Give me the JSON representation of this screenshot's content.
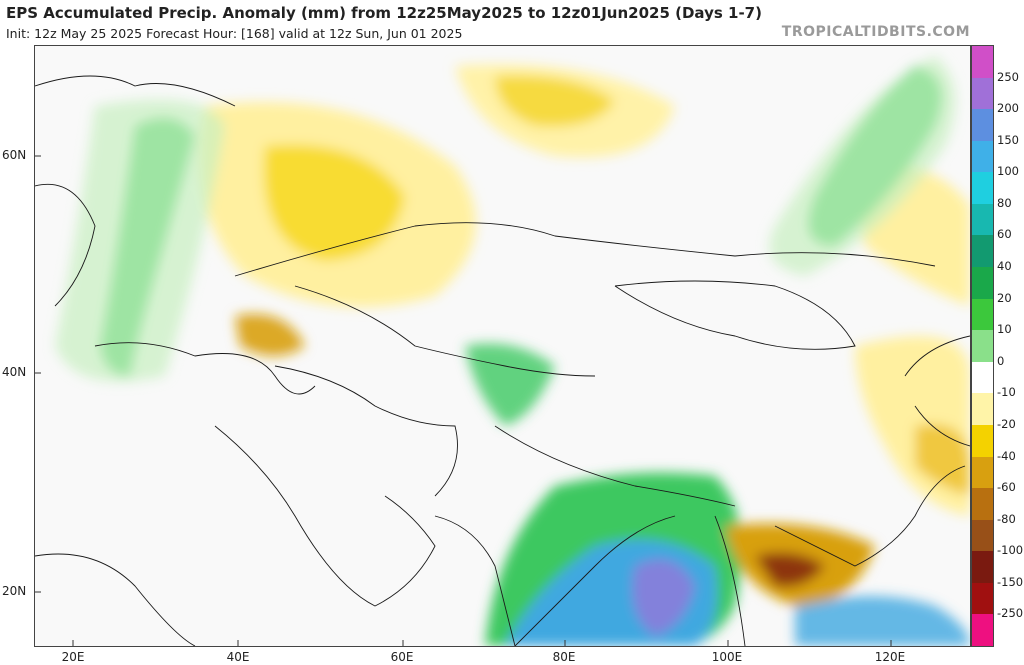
{
  "header": {
    "title": "EPS Accumulated Precip. Anomaly (mm) from 12z25May2025 to 12z01Jun2025 (Days 1-7)",
    "subtitle": "Init: 12z May 25 2025   Forecast Hour: [168]   valid at 12z Sun, Jun 01 2025",
    "brand": "TROPICALTIDBITS.COM"
  },
  "map": {
    "lat_labels": [
      "60N",
      "40N",
      "20N"
    ],
    "lon_labels": [
      "20E",
      "40E",
      "60E",
      "80E",
      "100E",
      "120E"
    ]
  },
  "colorbar": {
    "labels": [
      "250",
      "200",
      "150",
      "100",
      "80",
      "60",
      "40",
      "20",
      "10",
      "0",
      "-10",
      "-20",
      "-40",
      "-60",
      "-80",
      "-100",
      "-150",
      "-250"
    ],
    "colors": [
      "#d04fc8",
      "#a070d8",
      "#5d8fe0",
      "#3fb0e8",
      "#1fcfe0",
      "#18b8b0",
      "#129a70",
      "#1aa84a",
      "#3cc83c",
      "#8ae08a",
      "#ffffff",
      "#fff4a8",
      "#f4d200",
      "#d8a010",
      "#b87010",
      "#985018",
      "#7a1a10",
      "#a01010",
      "#ee1080"
    ]
  }
}
